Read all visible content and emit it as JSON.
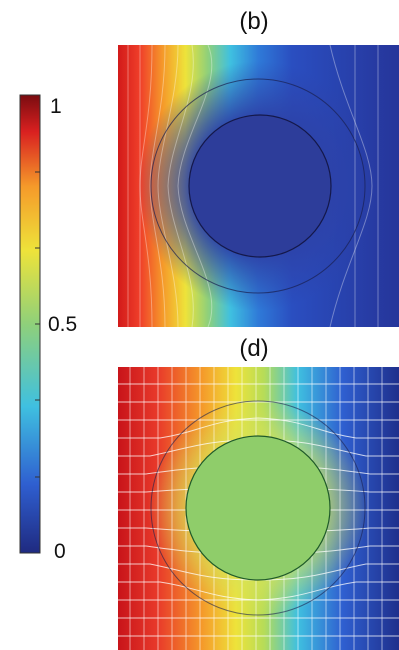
{
  "colorbar": {
    "ticks": [
      "1",
      "0.5",
      "0"
    ],
    "min": 0,
    "max": 1,
    "colormap": [
      "#1f2a80",
      "#2f5fd0",
      "#3fc0e0",
      "#8fd07a",
      "#eee33a",
      "#f59a2a",
      "#d92020",
      "#7a0c10"
    ]
  },
  "panels": [
    {
      "label": "(b)",
      "inclusion_value": 0.08,
      "field": "cloaked-gradient-blocked"
    },
    {
      "label": "(d)",
      "inclusion_value": 0.5,
      "field": "linear-gradient-with-grid"
    }
  ],
  "chart_data": {
    "type": "heatmap",
    "colorbar_range": [
      0,
      1
    ],
    "colorbar_ticks": [
      0,
      0.5,
      1
    ],
    "panels": [
      "(b)",
      "(d)"
    ]
  }
}
